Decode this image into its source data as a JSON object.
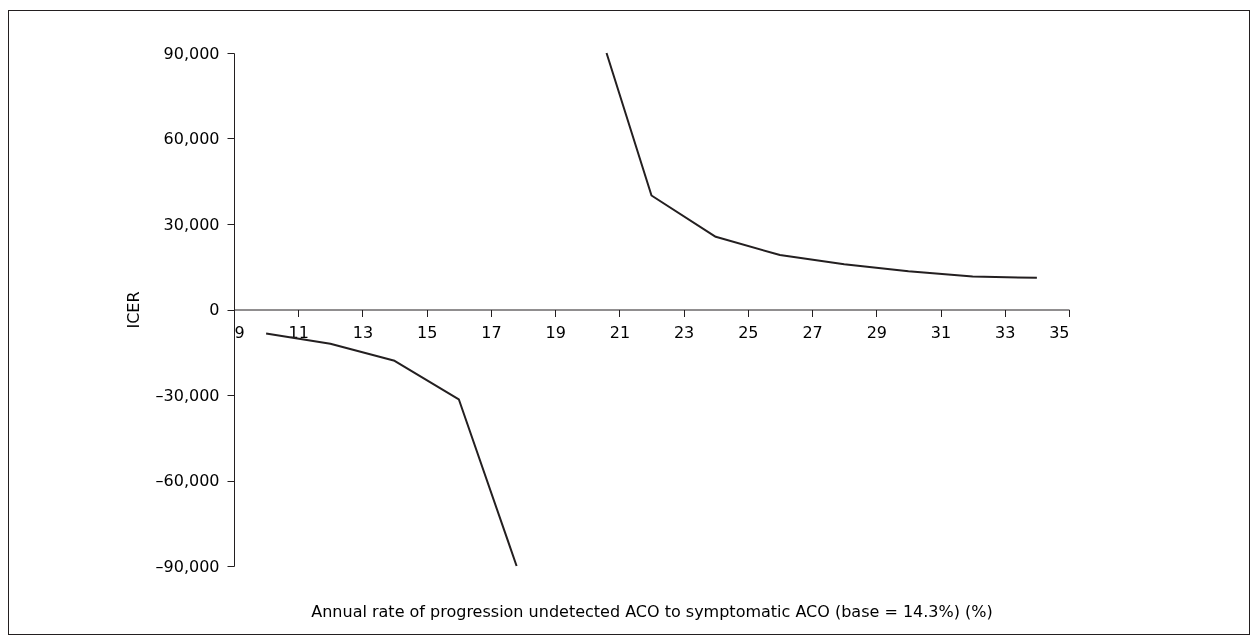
{
  "chart_data": {
    "type": "line",
    "xlabel": "Annual rate of progression undetected ACO to symptomatic ACO (base = 14.3%) (%)",
    "ylabel": "ICER",
    "xlim": [
      9,
      35
    ],
    "xticks": [
      9,
      11,
      13,
      15,
      17,
      19,
      21,
      23,
      25,
      27,
      29,
      31,
      33,
      35
    ],
    "ylim": [
      -90000,
      90000
    ],
    "yticks": [
      {
        "value": -90000,
        "label": "–90,000"
      },
      {
        "value": -60000,
        "label": "–60,000"
      },
      {
        "value": -30000,
        "label": "–30,000"
      },
      {
        "value": 0,
        "label": "0"
      },
      {
        "value": 30000,
        "label": "30,000"
      },
      {
        "value": 60000,
        "label": "60,000"
      },
      {
        "value": 90000,
        "label": "90,000"
      }
    ],
    "grid": false,
    "marker": "none",
    "line_style": "solid",
    "series": [
      {
        "color": "#231f20",
        "x": [
          10,
          12,
          14,
          16,
          17.8
        ],
        "values": [
          -8400,
          -12000,
          -18000,
          -31500,
          -90000
        ]
      },
      {
        "color": "#231f20",
        "x": [
          20.6,
          22,
          24,
          26,
          28,
          30,
          32,
          34
        ],
        "values": [
          90000,
          40000,
          25500,
          19100,
          15900,
          13400,
          11600,
          11100
        ]
      }
    ]
  }
}
